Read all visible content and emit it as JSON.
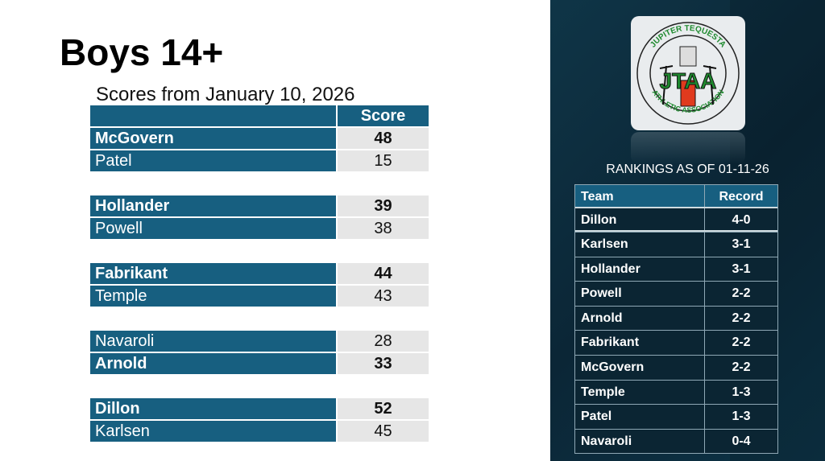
{
  "title": "Boys 14+",
  "subtitle": "Scores from January 10, 2026",
  "scores": {
    "header": {
      "team": "",
      "score": "Score"
    },
    "games": [
      [
        {
          "team": "McGovern",
          "score": "48",
          "winner": true
        },
        {
          "team": "Patel",
          "score": "15",
          "winner": false
        }
      ],
      [
        {
          "team": "Hollander",
          "score": "39",
          "winner": true
        },
        {
          "team": "Powell",
          "score": "38",
          "winner": false
        }
      ],
      [
        {
          "team": "Fabrikant",
          "score": "44",
          "winner": true
        },
        {
          "team": "Temple",
          "score": "43",
          "winner": false
        }
      ],
      [
        {
          "team": "Navaroli",
          "score": "28",
          "winner": false
        },
        {
          "team": "Arnold",
          "score": "33",
          "winner": true
        }
      ],
      [
        {
          "team": "Dillon",
          "score": "52",
          "winner": true
        },
        {
          "team": "Karlsen",
          "score": "45",
          "winner": false
        }
      ]
    ]
  },
  "logo": {
    "top_text": "JUPITER TEQUESTA",
    "center_text": "JTAA",
    "bottom_text": "ATHLETIC ASSOCIATION"
  },
  "rankings": {
    "title": "RANKINGS AS OF 01-11-26",
    "header": {
      "team": "Team",
      "record": "Record"
    },
    "rows": [
      {
        "team": "Dillon",
        "record": "4-0"
      },
      {
        "team": "Karlsen",
        "record": "3-1"
      },
      {
        "team": "Hollander",
        "record": "3-1"
      },
      {
        "team": "Powell",
        "record": "2-2"
      },
      {
        "team": "Arnold",
        "record": "2-2"
      },
      {
        "team": "Fabrikant",
        "record": "2-2"
      },
      {
        "team": "McGovern",
        "record": "2-2"
      },
      {
        "team": "Temple",
        "record": "1-3"
      },
      {
        "team": "Patel",
        "record": "1-3"
      },
      {
        "team": "Navaroli",
        "record": "0-4"
      }
    ]
  },
  "colors": {
    "table_blue": "#175f80",
    "panel_dark": "#0b2636",
    "score_bg": "#e6e6e6"
  }
}
